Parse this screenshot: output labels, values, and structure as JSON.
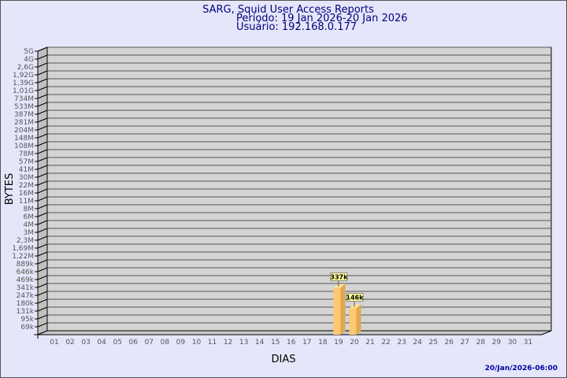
{
  "chart_data": {
    "type": "bar",
    "title": "SARG, Squid User Access Reports",
    "subtitle_period": "Período: 19 Jan 2026-20 Jan 2026",
    "subtitle_user": "Usuário: 192.168.0.177",
    "xlabel": "DIAS",
    "ylabel": "BYTES",
    "y_scale": "log",
    "grid": true,
    "y_tick_labels": [
      "5G",
      "4G",
      "2,6G",
      "1,92G",
      "1,39G",
      "1,01G",
      "734M",
      "533M",
      "387M",
      "281M",
      "204M",
      "148M",
      "108M",
      "78M",
      "57M",
      "41M",
      "30M",
      "22M",
      "16M",
      "11M",
      "8M",
      "6M",
      "4M",
      "3M",
      "2,3M",
      "1,69M",
      "1,22M",
      "889k",
      "646k",
      "469k",
      "341k",
      "247k",
      "180k",
      "131k",
      "95k",
      "69k"
    ],
    "categories": [
      "01",
      "02",
      "03",
      "04",
      "05",
      "06",
      "07",
      "08",
      "09",
      "10",
      "11",
      "12",
      "13",
      "14",
      "15",
      "16",
      "17",
      "18",
      "19",
      "20",
      "21",
      "22",
      "23",
      "24",
      "25",
      "26",
      "27",
      "28",
      "29",
      "30",
      "31"
    ],
    "bars": [
      {
        "category": "19",
        "value": 337000,
        "label": "337k"
      },
      {
        "category": "20",
        "value": 146000,
        "label": "146k"
      }
    ],
    "colors": {
      "bar": "#ffc86e",
      "bar_side": "#e0a850",
      "bar_top": "#ffe09a",
      "plot_back": "#d4d4d4",
      "title": "#000080",
      "label_box": "#ffff99"
    }
  },
  "footer": {
    "timestamp": "20/Jan/2026-06:00"
  }
}
